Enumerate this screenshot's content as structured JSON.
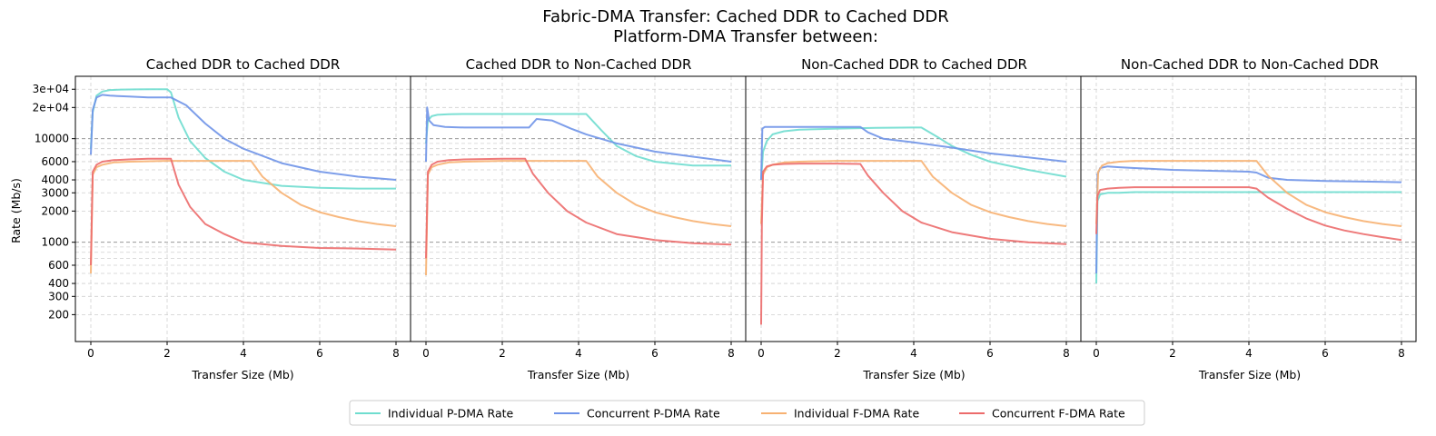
{
  "figure": {
    "title_line1": "Fabric-DMA Transfer: Cached DDR to Cached DDR",
    "title_line2": "Platform-DMA Transfer between:"
  },
  "legend": [
    {
      "name": "Individual P-DMA Rate",
      "color": "#6FDDCF"
    },
    {
      "name": "Concurrent P-DMA Rate",
      "color": "#6F93E8"
    },
    {
      "name": "Individual F-DMA Rate",
      "color": "#F7B172"
    },
    {
      "name": "Concurrent F-DMA Rate",
      "color": "#EC6B6B"
    }
  ],
  "chart_data": [
    {
      "type": "line",
      "title": "Cached DDR to Cached DDR",
      "xlabel": "Transfer Size (Mb)",
      "ylabel": "Rate (Mb/s)",
      "xlim": [
        0,
        8
      ],
      "ylim": [
        110,
        40000
      ],
      "yscale": "log",
      "grid": true,
      "x_ticks": [
        "0",
        "2",
        "4",
        "6",
        "8"
      ],
      "y_ticks": [
        "200",
        "300",
        "400",
        "600",
        "1000",
        "2000",
        "3000",
        "4000",
        "6000",
        "10000",
        "2e+04",
        "3e+04"
      ],
      "series": [
        {
          "name": "Individual P-DMA Rate",
          "x": [
            0,
            0.05,
            0.15,
            0.3,
            0.5,
            0.8,
            1.2,
            1.6,
            2.0,
            2.1,
            2.3,
            2.6,
            3.0,
            3.5,
            4.0,
            5.0,
            6.0,
            7.0,
            8.0
          ],
          "y": [
            8000,
            18000,
            26000,
            28500,
            29500,
            29800,
            29900,
            29950,
            30000,
            28000,
            16000,
            9500,
            6500,
            4800,
            4000,
            3500,
            3350,
            3300,
            3300
          ]
        },
        {
          "name": "Concurrent P-DMA Rate",
          "x": [
            0,
            0.05,
            0.15,
            0.3,
            0.5,
            1.0,
            1.5,
            2.0,
            2.1,
            2.5,
            3.0,
            3.5,
            4.0,
            5.0,
            6.0,
            7.0,
            8.0
          ],
          "y": [
            7000,
            19000,
            25000,
            26500,
            26000,
            25500,
            25000,
            25000,
            25000,
            21000,
            14000,
            10000,
            8000,
            5800,
            4800,
            4300,
            4000
          ]
        },
        {
          "name": "Individual F-DMA Rate",
          "x": [
            0,
            0.05,
            0.15,
            0.3,
            0.6,
            1.0,
            2.0,
            3.0,
            4.0,
            4.2,
            4.5,
            5.0,
            5.5,
            6.0,
            6.5,
            7.0,
            7.5,
            8.0
          ],
          "y": [
            500,
            4500,
            5300,
            5600,
            5900,
            6000,
            6100,
            6100,
            6100,
            6100,
            4300,
            3000,
            2300,
            1950,
            1750,
            1600,
            1500,
            1430
          ]
        },
        {
          "name": "Concurrent F-DMA Rate",
          "x": [
            0,
            0.05,
            0.15,
            0.3,
            0.6,
            1.0,
            1.5,
            2.0,
            2.1,
            2.3,
            2.6,
            3.0,
            3.5,
            4.0,
            5.0,
            6.0,
            7.0,
            8.0
          ],
          "y": [
            600,
            4800,
            5600,
            6000,
            6200,
            6300,
            6400,
            6400,
            6400,
            3600,
            2200,
            1500,
            1200,
            1000,
            920,
            880,
            870,
            850
          ]
        }
      ]
    },
    {
      "type": "line",
      "title": "Cached DDR to Non-Cached DDR",
      "xlabel": "Transfer Size (Mb)",
      "xlim": [
        0,
        8
      ],
      "ylim": [
        110,
        40000
      ],
      "yscale": "log",
      "grid": true,
      "x_ticks": [
        "0",
        "2",
        "4",
        "6",
        "8"
      ],
      "series": [
        {
          "name": "Individual P-DMA Rate",
          "x": [
            0,
            0.05,
            0.15,
            0.3,
            0.6,
            1.0,
            2.0,
            3.0,
            4.0,
            4.2,
            4.6,
            5.0,
            5.5,
            6.0,
            7.0,
            8.0
          ],
          "y": [
            9000,
            15000,
            16500,
            17000,
            17200,
            17300,
            17300,
            17300,
            17300,
            17300,
            12000,
            8500,
            6800,
            6000,
            5500,
            5500
          ]
        },
        {
          "name": "Concurrent P-DMA Rate",
          "x": [
            0,
            0.03,
            0.08,
            0.2,
            0.5,
            1.0,
            2.0,
            2.7,
            2.9,
            3.3,
            3.8,
            4.2,
            5.0,
            6.0,
            7.0,
            8.0
          ],
          "y": [
            6000,
            20000,
            15000,
            13500,
            13000,
            12800,
            12800,
            12800,
            15500,
            15000,
            12500,
            11000,
            9000,
            7500,
            6700,
            6000
          ]
        },
        {
          "name": "Individual F-DMA Rate",
          "x": [
            0,
            0.05,
            0.15,
            0.3,
            0.6,
            1.0,
            2.0,
            3.0,
            4.0,
            4.2,
            4.5,
            5.0,
            5.5,
            6.0,
            6.5,
            7.0,
            7.5,
            8.0
          ],
          "y": [
            480,
            4500,
            5300,
            5600,
            5900,
            6000,
            6100,
            6100,
            6100,
            6100,
            4300,
            3000,
            2300,
            1950,
            1750,
            1600,
            1500,
            1430
          ]
        },
        {
          "name": "Concurrent F-DMA Rate",
          "x": [
            0,
            0.05,
            0.15,
            0.3,
            0.6,
            1.0,
            2.0,
            2.6,
            2.8,
            3.2,
            3.7,
            4.2,
            5.0,
            6.0,
            7.0,
            8.0
          ],
          "y": [
            700,
            4800,
            5600,
            6000,
            6200,
            6300,
            6400,
            6400,
            4600,
            3000,
            2000,
            1550,
            1200,
            1050,
            980,
            950
          ]
        }
      ]
    },
    {
      "type": "line",
      "title": "Non-Cached DDR to Cached DDR",
      "xlabel": "Transfer Size (Mb)",
      "xlim": [
        0,
        8
      ],
      "ylim": [
        110,
        40000
      ],
      "yscale": "log",
      "grid": true,
      "x_ticks": [
        "0",
        "2",
        "4",
        "6",
        "8"
      ],
      "series": [
        {
          "name": "Individual P-DMA Rate",
          "x": [
            0,
            0.05,
            0.15,
            0.3,
            0.6,
            1.0,
            2.0,
            3.0,
            4.0,
            4.2,
            4.6,
            5.0,
            5.5,
            6.0,
            7.0,
            8.0
          ],
          "y": [
            4000,
            7500,
            9500,
            11000,
            11800,
            12200,
            12500,
            12700,
            12800,
            12800,
            10500,
            8500,
            7000,
            6000,
            5000,
            4300
          ]
        },
        {
          "name": "Concurrent P-DMA Rate",
          "x": [
            0,
            0.03,
            0.1,
            0.3,
            0.6,
            1.0,
            2.0,
            2.6,
            2.8,
            3.2,
            4.0,
            5.0,
            6.0,
            7.0,
            8.0
          ],
          "y": [
            4000,
            12500,
            13000,
            13000,
            13000,
            13000,
            13000,
            13000,
            11500,
            10000,
            9200,
            8200,
            7200,
            6600,
            6000
          ]
        },
        {
          "name": "Individual F-DMA Rate",
          "x": [
            0,
            0.05,
            0.15,
            0.3,
            0.6,
            1.0,
            2.0,
            3.0,
            4.0,
            4.2,
            4.5,
            5.0,
            5.5,
            6.0,
            6.5,
            7.0,
            7.5,
            8.0
          ],
          "y": [
            1500,
            4500,
            5300,
            5600,
            5900,
            6000,
            6100,
            6100,
            6100,
            6100,
            4300,
            3000,
            2300,
            1950,
            1750,
            1600,
            1500,
            1430
          ]
        },
        {
          "name": "Concurrent F-DMA Rate",
          "x": [
            0,
            0.02,
            0.05,
            0.15,
            0.3,
            0.6,
            1.0,
            2.0,
            2.6,
            2.8,
            3.2,
            3.7,
            4.2,
            5.0,
            6.0,
            7.0,
            8.0
          ],
          "y": [
            160,
            1500,
            4800,
            5400,
            5600,
            5700,
            5750,
            5750,
            5700,
            4400,
            3000,
            2000,
            1550,
            1250,
            1080,
            1000,
            960
          ]
        }
      ]
    },
    {
      "type": "line",
      "title": "Non-Cached DDR to Non-Cached DDR",
      "xlabel": "Transfer Size (Mb)",
      "xlim": [
        0,
        8
      ],
      "ylim": [
        110,
        40000
      ],
      "yscale": "log",
      "grid": true,
      "x_ticks": [
        "0",
        "2",
        "4",
        "6",
        "8"
      ],
      "series": [
        {
          "name": "Individual P-DMA Rate",
          "x": [
            0,
            0.03,
            0.1,
            0.3,
            0.6,
            1.0,
            2.0,
            3.0,
            4.0,
            4.2,
            5.0,
            6.0,
            7.0,
            8.0
          ],
          "y": [
            400,
            2500,
            2900,
            3000,
            3000,
            3050,
            3050,
            3050,
            3050,
            3050,
            3050,
            3050,
            3050,
            3050
          ]
        },
        {
          "name": "Concurrent P-DMA Rate",
          "x": [
            0,
            0.03,
            0.1,
            0.3,
            0.6,
            1.0,
            2.0,
            3.0,
            4.0,
            4.2,
            4.5,
            5.0,
            6.0,
            7.0,
            8.0
          ],
          "y": [
            500,
            4500,
            5200,
            5400,
            5300,
            5200,
            5000,
            4900,
            4800,
            4700,
            4200,
            4000,
            3900,
            3850,
            3800
          ]
        },
        {
          "name": "Individual F-DMA Rate",
          "x": [
            0,
            0.05,
            0.15,
            0.3,
            0.6,
            1.0,
            2.0,
            3.0,
            4.0,
            4.2,
            4.5,
            5.0,
            5.5,
            6.0,
            6.5,
            7.0,
            7.5,
            8.0
          ],
          "y": [
            1500,
            4800,
            5500,
            5800,
            6000,
            6100,
            6100,
            6100,
            6100,
            6100,
            4400,
            3000,
            2300,
            1950,
            1750,
            1600,
            1500,
            1430
          ]
        },
        {
          "name": "Concurrent F-DMA Rate",
          "x": [
            0,
            0.03,
            0.1,
            0.3,
            0.6,
            1.0,
            2.0,
            3.0,
            4.0,
            4.2,
            4.5,
            5.0,
            5.5,
            6.0,
            6.5,
            7.0,
            7.5,
            8.0
          ],
          "y": [
            1200,
            2800,
            3200,
            3300,
            3350,
            3400,
            3400,
            3400,
            3400,
            3300,
            2700,
            2100,
            1700,
            1450,
            1300,
            1200,
            1120,
            1050
          ]
        }
      ]
    }
  ]
}
